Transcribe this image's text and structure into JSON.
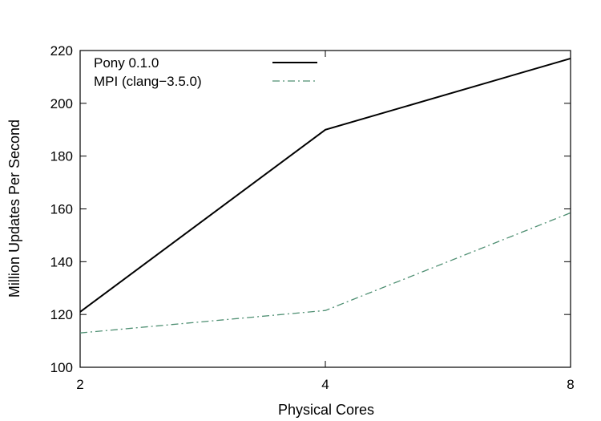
{
  "chart_data": {
    "type": "line",
    "xlabel": "Physical Cores",
    "ylabel": "Million Updates Per Second",
    "x": [
      2,
      4,
      8
    ],
    "x_ticks": [
      "2",
      "4",
      "8"
    ],
    "ylim": [
      100,
      220
    ],
    "y_ticks": [
      100,
      120,
      140,
      160,
      180,
      200,
      220
    ],
    "grid": false,
    "legend_position": "top-left",
    "series": [
      {
        "name": "Pony 0.1.0",
        "values": [
          121,
          190,
          217
        ],
        "color": "#000000",
        "style": "solid"
      },
      {
        "name": "MPI (clang−3.5.0)",
        "values": [
          113,
          121.5,
          158.5
        ],
        "color": "#4e8f72",
        "style": "dash-dot"
      }
    ]
  }
}
